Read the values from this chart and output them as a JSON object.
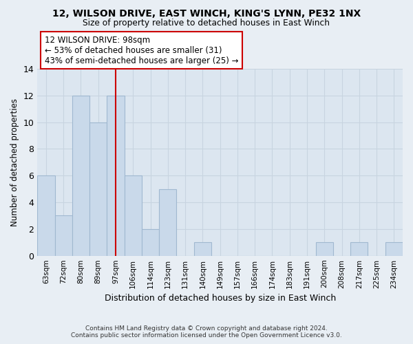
{
  "title1": "12, WILSON DRIVE, EAST WINCH, KING'S LYNN, PE32 1NX",
  "title2": "Size of property relative to detached houses in East Winch",
  "xlabel": "Distribution of detached houses by size in East Winch",
  "ylabel": "Number of detached properties",
  "bins": [
    "63sqm",
    "72sqm",
    "80sqm",
    "89sqm",
    "97sqm",
    "106sqm",
    "114sqm",
    "123sqm",
    "131sqm",
    "140sqm",
    "149sqm",
    "157sqm",
    "166sqm",
    "174sqm",
    "183sqm",
    "191sqm",
    "200sqm",
    "208sqm",
    "217sqm",
    "225sqm",
    "234sqm"
  ],
  "counts": [
    6,
    3,
    12,
    10,
    12,
    6,
    2,
    5,
    0,
    1,
    0,
    0,
    0,
    0,
    0,
    0,
    1,
    0,
    1,
    0,
    1
  ],
  "bar_color": "#c9d9ea",
  "bar_edge_color": "#a0b8d0",
  "grid_color": "#c8d4e0",
  "vline_x_index": 4,
  "vline_color": "#cc0000",
  "annotation_line1": "12 WILSON DRIVE: 98sqm",
  "annotation_line2": "← 53% of detached houses are smaller (31)",
  "annotation_line3": "43% of semi-detached houses are larger (25) →",
  "annotation_box_color": "#ffffff",
  "annotation_box_edge": "#cc0000",
  "footer1": "Contains HM Land Registry data © Crown copyright and database right 2024.",
  "footer2": "Contains public sector information licensed under the Open Government Licence v3.0.",
  "bg_color": "#e8eef4",
  "plot_bg_color": "#dce6f0",
  "ylim": [
    0,
    14
  ],
  "yticks": [
    0,
    2,
    4,
    6,
    8,
    10,
    12,
    14
  ]
}
